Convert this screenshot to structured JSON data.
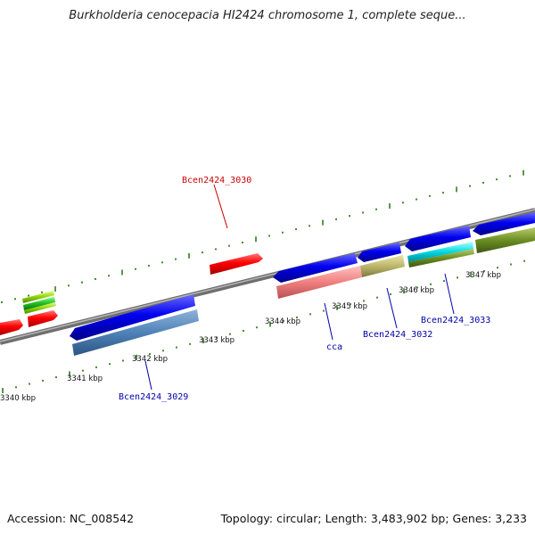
{
  "title": "Burkholderia cenocepacia HI2424 chromosome 1, complete seque...",
  "footer": {
    "accession": "Accession: NC_008542",
    "stats": "Topology: circular; Length: 3,483,902 bp; Genes: 3,233"
  },
  "scale": {
    "ticks": [
      "3340 kbp",
      "3341 kbp",
      "3342 kbp",
      "3343 kbp",
      "3344 kbp",
      "3345 kbp",
      "3346 kbp",
      "3347 kbp"
    ]
  },
  "gene_labels": [
    {
      "name": "Bcen2424_3030",
      "strand": "forward",
      "color": "#cc0000"
    },
    {
      "name": "Bcen2424_3029",
      "strand": "reverse",
      "color": "#0000aa"
    },
    {
      "name": "cca",
      "strand": "reverse",
      "color": "#0000aa"
    },
    {
      "name": "Bcen2424_3032",
      "strand": "reverse",
      "color": "#0000aa"
    },
    {
      "name": "Bcen2424_3033",
      "strand": "reverse",
      "color": "#0000aa"
    }
  ],
  "colors": {
    "backbone": "#8c8c8c",
    "tick": "#2e7d1e",
    "forward_feature": "#ff0000",
    "reverse_feature": "#0000ee"
  }
}
